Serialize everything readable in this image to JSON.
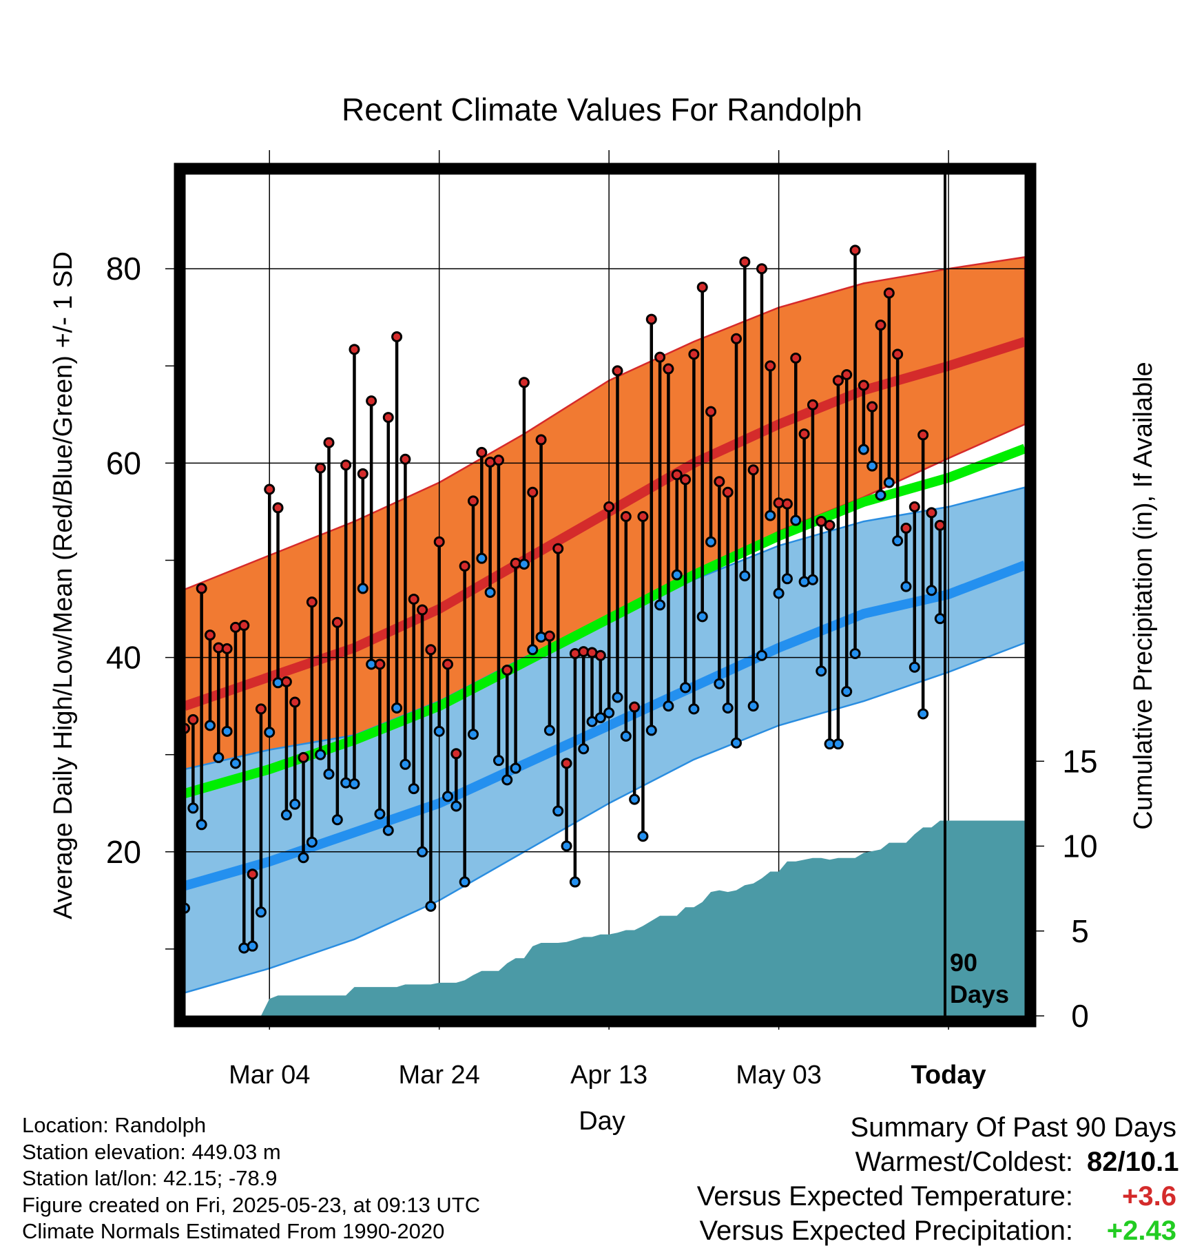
{
  "title": "Recent Climate Values For Randolph",
  "ylabel_left": "Average Daily High/Low/Mean (Red/Blue/Green) +/- 1 SD",
  "ylabel_right": "Cumulative Precipitation (in), If Available",
  "xlabel": "Day",
  "today_marker": {
    "line1": "90",
    "line2": "Days"
  },
  "colors": {
    "high_band": "#f17a32",
    "high_band_edge": "#d62a2a",
    "high_mean": "#d42b2b",
    "low_band": "#86c0e6",
    "low_band_edge": "#2a8de0",
    "low_mean": "#2490ef",
    "mean_line": "#00ee00",
    "precip": "#4b9aa6",
    "high_dot": "#d42b2b",
    "low_dot": "#2490ef",
    "warm_text": "#d42b2b",
    "wet_text": "#22cc22"
  },
  "footer": {
    "location": "Location: Randolph",
    "elevation": "Station elevation: 449.03 m",
    "latlon": "Station lat/lon: 42.15; -78.9",
    "created": "Figure created on Fri, 2025-05-23, at 09:13 UTC",
    "normals": "Climate Normals Estimated From 1990-2020"
  },
  "summary": {
    "heading": "Summary Of Past 90 Days",
    "warmest_label": "Warmest/Coldest:",
    "warmest_value": "82/10.1",
    "temp_label": "Versus Expected Temperature:",
    "temp_value": "+3.6",
    "precip_label": "Versus Expected Precipitation:",
    "precip_value": "+2.43"
  },
  "chart_data": {
    "type": "line",
    "x_start": "2025-02-22",
    "x_ticks": [
      "Mar 04",
      "Mar 24",
      "Apr 13",
      "May 03",
      "Today"
    ],
    "y_ticks": [
      20,
      40,
      60,
      80
    ],
    "ylim": [
      0,
      88
    ],
    "precip_ticks": [
      0,
      5,
      10,
      15
    ],
    "precip_lim": [
      0,
      50
    ],
    "grid": true,
    "normals": {
      "high_mean": [
        [
          0,
          35
        ],
        [
          10,
          38
        ],
        [
          20,
          41
        ],
        [
          30,
          45
        ],
        [
          40,
          50
        ],
        [
          50,
          55
        ],
        [
          60,
          60
        ],
        [
          70,
          64
        ],
        [
          80,
          67.5
        ],
        [
          90,
          70
        ],
        [
          99,
          72.5
        ]
      ],
      "high_upper": [
        [
          0,
          47
        ],
        [
          10,
          50.5
        ],
        [
          20,
          54
        ],
        [
          30,
          58
        ],
        [
          40,
          63
        ],
        [
          50,
          68.5
        ],
        [
          60,
          72.5
        ],
        [
          70,
          76
        ],
        [
          80,
          78.5
        ],
        [
          90,
          80
        ],
        [
          99,
          81.2
        ]
      ],
      "high_lower": [
        [
          0,
          24
        ],
        [
          10,
          27
        ],
        [
          20,
          29.5
        ],
        [
          30,
          34
        ],
        [
          40,
          38.5
        ],
        [
          50,
          43.5
        ],
        [
          60,
          48
        ],
        [
          70,
          53
        ],
        [
          80,
          56.5
        ],
        [
          90,
          60.5
        ],
        [
          99,
          64
        ]
      ],
      "low_mean": [
        [
          0,
          16.5
        ],
        [
          10,
          19
        ],
        [
          20,
          22
        ],
        [
          30,
          25
        ],
        [
          40,
          29
        ],
        [
          50,
          33
        ],
        [
          60,
          37
        ],
        [
          70,
          41
        ],
        [
          80,
          44.5
        ],
        [
          90,
          46.5
        ],
        [
          99,
          49.5
        ]
      ],
      "low_upper": [
        [
          0,
          28.5
        ],
        [
          10,
          30.5
        ],
        [
          20,
          32
        ],
        [
          30,
          35.5
        ],
        [
          40,
          40
        ],
        [
          50,
          44
        ],
        [
          60,
          48
        ],
        [
          70,
          51.5
        ],
        [
          80,
          54
        ],
        [
          90,
          55.5
        ],
        [
          99,
          57.5
        ]
      ],
      "low_lower": [
        [
          0,
          5.5
        ],
        [
          10,
          8
        ],
        [
          20,
          11
        ],
        [
          30,
          15
        ],
        [
          40,
          20
        ],
        [
          50,
          25
        ],
        [
          60,
          29.5
        ],
        [
          70,
          33
        ],
        [
          80,
          35.5
        ],
        [
          90,
          38.5
        ],
        [
          99,
          41.5
        ]
      ],
      "mean": [
        [
          0,
          26
        ],
        [
          10,
          28.5
        ],
        [
          20,
          31.5
        ],
        [
          30,
          35
        ],
        [
          40,
          39.5
        ],
        [
          50,
          44
        ],
        [
          60,
          48.5
        ],
        [
          70,
          52.5
        ],
        [
          80,
          56
        ],
        [
          90,
          58.5
        ],
        [
          99,
          61.5
        ]
      ]
    },
    "series": [
      {
        "name": "High",
        "values": [
          32.7,
          33.6,
          47.1,
          42.3,
          41.0,
          40.9,
          43.1,
          43.3,
          17.7,
          34.7,
          57.3,
          55.4,
          37.5,
          35.4,
          29.7,
          45.7,
          59.5,
          62.1,
          43.6,
          59.8,
          71.7,
          58.9,
          66.4,
          39.3,
          64.7,
          73.0,
          60.4,
          46.0,
          44.9,
          40.8,
          51.9,
          39.3,
          30.1,
          49.4,
          56.1,
          61.1,
          60.1,
          60.3,
          38.7,
          49.7,
          68.3,
          57.0,
          62.4,
          42.2,
          51.2,
          29.1,
          40.4,
          40.6,
          40.5,
          40.2,
          55.5,
          69.5,
          54.5,
          34.9,
          54.5,
          74.8,
          70.9,
          69.7,
          58.8,
          58.3,
          71.2,
          78.1,
          65.3,
          58.1,
          57.0,
          72.8,
          80.7,
          59.3,
          80.0,
          70.0,
          55.9,
          55.8,
          70.8,
          63.0,
          66.0,
          54.0,
          53.6,
          68.5,
          69.1,
          81.9,
          68.0,
          65.8,
          74.2,
          77.5,
          71.2,
          53.3,
          55.5,
          62.9,
          54.9,
          53.6
        ]
      },
      {
        "name": "Low",
        "values": [
          14.2,
          24.5,
          22.8,
          33.0,
          29.7,
          32.4,
          29.1,
          10.1,
          10.3,
          13.8,
          32.3,
          37.4,
          23.8,
          24.9,
          19.4,
          21.0,
          30.0,
          28.0,
          23.3,
          27.1,
          27.0,
          47.1,
          39.3,
          23.9,
          22.2,
          34.8,
          29.0,
          26.5,
          20.0,
          14.4,
          32.4,
          25.7,
          24.7,
          16.9,
          32.1,
          50.2,
          46.7,
          29.4,
          27.4,
          28.6,
          49.6,
          40.8,
          42.1,
          32.5,
          24.2,
          20.6,
          16.9,
          30.6,
          33.4,
          33.8,
          34.3,
          35.9,
          31.9,
          25.4,
          21.6,
          32.5,
          45.4,
          35.0,
          48.5,
          36.9,
          34.7,
          44.2,
          51.9,
          37.3,
          34.8,
          31.2,
          48.4,
          35.0,
          40.2,
          54.6,
          46.6,
          48.1,
          54.1,
          47.8,
          48.0,
          38.6,
          31.1,
          31.1,
          36.5,
          40.4,
          61.4,
          59.7,
          56.7,
          58.0,
          52.0,
          47.3,
          39.0,
          34.2,
          46.9,
          44.0
        ]
      }
    ],
    "precip_cumulative": [
      [
        0,
        0
      ],
      [
        9,
        0
      ],
      [
        10,
        1.0
      ],
      [
        11,
        1.2
      ],
      [
        19,
        1.2
      ],
      [
        20,
        1.7
      ],
      [
        25,
        1.7
      ],
      [
        26,
        1.85
      ],
      [
        29,
        1.85
      ],
      [
        30,
        1.95
      ],
      [
        32,
        1.95
      ],
      [
        33,
        2.1
      ],
      [
        34,
        2.4
      ],
      [
        35,
        2.65
      ],
      [
        37,
        2.65
      ],
      [
        38,
        3.1
      ],
      [
        39,
        3.4
      ],
      [
        40,
        3.4
      ],
      [
        41,
        4.1
      ],
      [
        42,
        4.3
      ],
      [
        44,
        4.3
      ],
      [
        45,
        4.35
      ],
      [
        46,
        4.5
      ],
      [
        47,
        4.65
      ],
      [
        48,
        4.65
      ],
      [
        49,
        4.8
      ],
      [
        50,
        4.8
      ],
      [
        51,
        4.9
      ],
      [
        52,
        5.05
      ],
      [
        53,
        5.05
      ],
      [
        54,
        5.3
      ],
      [
        55,
        5.6
      ],
      [
        56,
        5.9
      ],
      [
        57,
        5.9
      ],
      [
        58,
        5.9
      ],
      [
        59,
        6.4
      ],
      [
        60,
        6.4
      ],
      [
        61,
        6.7
      ],
      [
        62,
        7.3
      ],
      [
        63,
        7.4
      ],
      [
        64,
        7.3
      ],
      [
        65,
        7.4
      ],
      [
        66,
        7.7
      ],
      [
        67,
        7.8
      ],
      [
        68,
        8.1
      ],
      [
        69,
        8.5
      ],
      [
        70,
        8.5
      ],
      [
        71,
        9.1
      ],
      [
        72,
        9.1
      ],
      [
        73,
        9.2
      ],
      [
        74,
        9.3
      ],
      [
        75,
        9.3
      ],
      [
        76,
        9.2
      ],
      [
        77,
        9.3
      ],
      [
        78,
        9.3
      ],
      [
        79,
        9.3
      ],
      [
        80,
        9.6
      ],
      [
        81,
        9.7
      ],
      [
        82,
        9.8
      ],
      [
        83,
        10.2
      ],
      [
        84,
        10.2
      ],
      [
        85,
        10.2
      ],
      [
        86,
        10.7
      ],
      [
        87,
        11.1
      ],
      [
        88,
        11.1
      ],
      [
        89,
        11.5
      ],
      [
        99,
        11.5
      ]
    ]
  }
}
